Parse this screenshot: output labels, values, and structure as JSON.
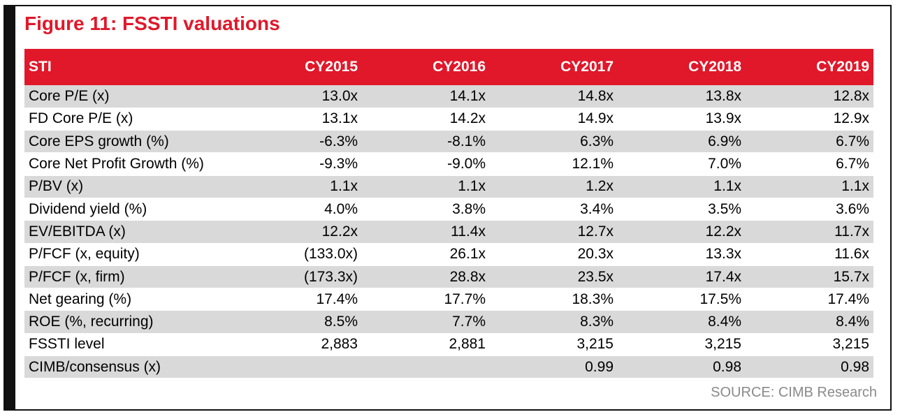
{
  "title": "Figure 11: FSSTI valuations",
  "table": {
    "headers": [
      "STI",
      "CY2015",
      "CY2016",
      "CY2017",
      "CY2018",
      "CY2019"
    ],
    "rows": [
      [
        "Core P/E (x)",
        "13.0x",
        "14.1x",
        "14.8x",
        "13.8x",
        "12.8x"
      ],
      [
        "FD Core P/E (x)",
        "13.1x",
        "14.2x",
        "14.9x",
        "13.9x",
        "12.9x"
      ],
      [
        "Core EPS growth (%)",
        "-6.3%",
        "-8.1%",
        "6.3%",
        "6.9%",
        "6.7%"
      ],
      [
        "Core Net Profit Growth (%)",
        "-9.3%",
        "-9.0%",
        "12.1%",
        "7.0%",
        "6.7%"
      ],
      [
        "P/BV (x)",
        "1.1x",
        "1.1x",
        "1.2x",
        "1.1x",
        "1.1x"
      ],
      [
        "Dividend yield (%)",
        "4.0%",
        "3.8%",
        "3.4%",
        "3.5%",
        "3.6%"
      ],
      [
        "EV/EBITDA (x)",
        "12.2x",
        "11.4x",
        "12.7x",
        "12.2x",
        "11.7x"
      ],
      [
        "P/FCF (x, equity)",
        "(133.0x)",
        "26.1x",
        "20.3x",
        "13.3x",
        "11.6x"
      ],
      [
        "P/FCF (x, firm)",
        "(173.3x)",
        "28.8x",
        "23.5x",
        "17.4x",
        "15.7x"
      ],
      [
        "Net gearing (%)",
        "17.4%",
        "17.7%",
        "18.3%",
        "17.5%",
        "17.4%"
      ],
      [
        "ROE (%, recurring)",
        "8.5%",
        "7.7%",
        "8.3%",
        "8.4%",
        "8.4%"
      ],
      [
        "FSSTI level",
        "2,883",
        "2,881",
        "3,215",
        "3,215",
        "3,215"
      ],
      [
        "CIMB/consensus (x)",
        "",
        "",
        "0.99",
        "0.98",
        "0.98"
      ]
    ]
  },
  "source": "SOURCE: CIMB Research",
  "colors": {
    "accent": "#e0182a",
    "row_shade": "#d9d9d9",
    "source_text": "#8a8a8a",
    "frame": "#111111"
  }
}
